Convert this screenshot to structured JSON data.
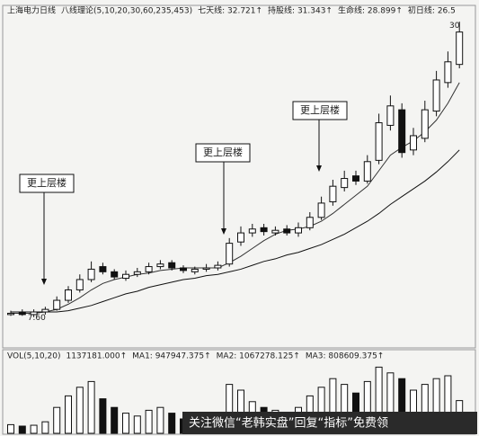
{
  "chart_data": {
    "type": "candlestick",
    "header": [
      "上海电力日线",
      "八线理论(5,10,20,30,60,235,453)",
      "七天线: 32.721↑",
      "持股线: 31.343↑",
      "生命线: 28.899↑",
      "初日线: 26.5"
    ],
    "open": [
      7.7,
      7.9,
      7.7,
      7.9,
      8.1,
      8.8,
      9.6,
      10.4,
      11.4,
      11.0,
      10.5,
      10.8,
      11.0,
      11.4,
      11.7,
      11.3,
      11.0,
      11.2,
      11.3,
      11.6,
      13.3,
      14.0,
      14.4,
      14.0,
      14.3,
      14.0,
      14.4,
      15.2,
      16.4,
      17.5,
      18.4,
      18.0,
      19.6,
      22.3,
      23.5,
      20.4,
      21.3,
      23.4,
      25.6,
      27.0
    ],
    "high": [
      8.0,
      8.1,
      8.1,
      8.3,
      9.1,
      9.9,
      10.8,
      11.8,
      11.7,
      11.2,
      11.1,
      11.3,
      11.7,
      11.9,
      11.9,
      11.5,
      11.4,
      11.6,
      11.8,
      13.6,
      14.5,
      14.7,
      14.7,
      14.5,
      14.6,
      14.8,
      15.6,
      16.8,
      18.1,
      18.8,
      18.8,
      20.0,
      23.2,
      24.6,
      24.0,
      22.1,
      24.2,
      26.5,
      28.0,
      30.3
    ],
    "low": [
      7.6,
      7.6,
      7.5,
      7.7,
      8.0,
      8.6,
      9.4,
      10.2,
      10.8,
      10.4,
      10.3,
      10.6,
      10.8,
      11.2,
      11.1,
      10.9,
      10.8,
      11.0,
      11.1,
      11.4,
      13.0,
      13.7,
      13.8,
      13.8,
      13.8,
      13.7,
      14.2,
      15.0,
      16.1,
      17.2,
      17.7,
      17.8,
      19.3,
      21.9,
      19.8,
      20.0,
      21.0,
      23.0,
      25.2,
      26.7
    ],
    "close": [
      7.8,
      7.7,
      7.9,
      8.1,
      8.8,
      9.6,
      10.4,
      11.2,
      11.0,
      10.6,
      10.8,
      11.0,
      11.4,
      11.6,
      11.3,
      11.1,
      11.2,
      11.3,
      11.5,
      13.2,
      14.0,
      14.3,
      14.1,
      14.2,
      14.0,
      14.4,
      15.2,
      16.3,
      17.6,
      18.2,
      18.0,
      19.5,
      22.5,
      23.8,
      20.2,
      21.5,
      23.5,
      25.8,
      27.2,
      29.5
    ],
    "series": [
      {
        "color": "#333333",
        "values": [
          7.8,
          7.8,
          7.8,
          7.9,
          8.1,
          8.5,
          9.0,
          9.6,
          10.1,
          10.4,
          10.6,
          10.8,
          10.9,
          11.1,
          11.2,
          11.3,
          11.3,
          11.3,
          11.3,
          11.7,
          12.2,
          12.8,
          13.4,
          13.9,
          14.2,
          14.3,
          14.5,
          14.9,
          15.5,
          16.2,
          16.9,
          17.6,
          18.8,
          20.0,
          20.6,
          21.1,
          21.8,
          22.7,
          24.0,
          25.6
        ]
      },
      {
        "color": "#111111",
        "values": [
          7.9,
          7.9,
          7.9,
          7.9,
          7.9,
          8.0,
          8.2,
          8.4,
          8.7,
          9.0,
          9.3,
          9.5,
          9.8,
          10.0,
          10.2,
          10.4,
          10.5,
          10.7,
          10.8,
          11.0,
          11.2,
          11.5,
          11.8,
          12.0,
          12.3,
          12.5,
          12.8,
          13.1,
          13.5,
          13.9,
          14.4,
          14.9,
          15.5,
          16.2,
          16.8,
          17.4,
          18.0,
          18.7,
          19.5,
          20.4
        ]
      }
    ],
    "ylim": [
      7,
      31
    ],
    "price_labels": [
      {
        "value": 7.6,
        "label": "7.60"
      },
      {
        "value": 30,
        "label": "30"
      }
    ],
    "annotations": [
      "更上层楼",
      "更上层楼",
      "更上层楼"
    ],
    "volume": {
      "header": [
        "VOL(5,10,20)",
        "1137181.000↑",
        "MA1: 947947.375↑",
        "MA2: 1067278.125↑",
        "MA3: 808609.375↑"
      ],
      "values": [
        300000,
        250000,
        280000,
        400000,
        900000,
        1300000,
        1600000,
        1800000,
        1200000,
        900000,
        700000,
        600000,
        800000,
        900000,
        700000,
        500000,
        450000,
        400000,
        500000,
        1700000,
        1500000,
        1100000,
        900000,
        800000,
        700000,
        900000,
        1300000,
        1600000,
        1900000,
        1700000,
        1400000,
        1800000,
        2300000,
        2100000,
        1900000,
        1500000,
        1700000,
        1900000,
        2000000,
        1137181
      ],
      "ylim": [
        0,
        2500000
      ]
    },
    "watermark": "关注微信“老韩实盘”回复“指标”免费领"
  }
}
